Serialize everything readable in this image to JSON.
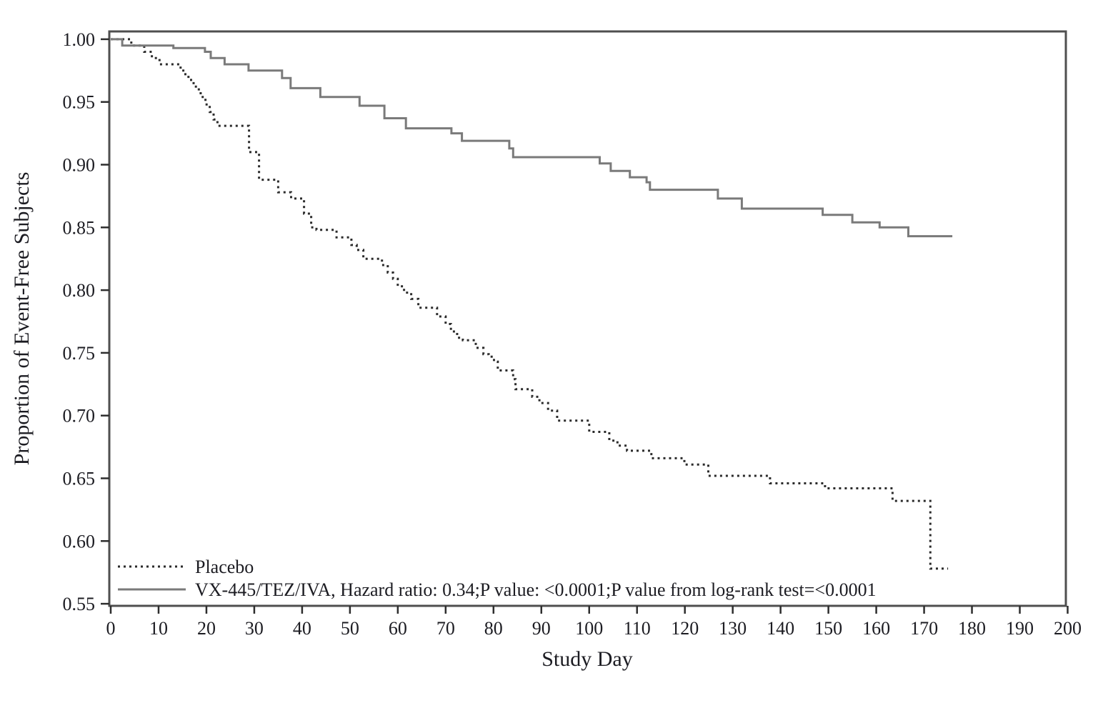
{
  "page": {
    "background": "#ffffff"
  },
  "chart_data": {
    "type": "line",
    "subtype": "kaplan-meier-step",
    "title": "",
    "xlabel": "Study Day",
    "ylabel": "Proportion of Event-Free Subjects",
    "xlim": [
      0,
      200
    ],
    "ylim": [
      0.55,
      1.0
    ],
    "x_ticks": [
      0,
      10,
      20,
      30,
      40,
      50,
      60,
      70,
      80,
      90,
      100,
      110,
      120,
      130,
      140,
      150,
      160,
      170,
      180,
      190,
      200
    ],
    "y_ticks": [
      1.0,
      0.95,
      0.9,
      0.85,
      0.8,
      0.75,
      0.7,
      0.65,
      0.6,
      0.55
    ],
    "grid": false,
    "legend_position": "inside-bottom-left",
    "series": [
      {
        "id": "placebo-curve",
        "name": "Placebo",
        "legend_label": "Placebo",
        "line_style": "dotted",
        "color": "#2b2b2b",
        "end_day": 175.0,
        "points": [
          [
            0,
            1.0
          ],
          [
            4.3,
            0.995
          ],
          [
            7.0,
            0.99
          ],
          [
            8.6,
            0.985
          ],
          [
            10.2,
            0.98
          ],
          [
            14.6,
            0.975
          ],
          [
            15.6,
            0.97
          ],
          [
            16.8,
            0.965
          ],
          [
            17.8,
            0.96
          ],
          [
            18.8,
            0.954
          ],
          [
            19.8,
            0.948
          ],
          [
            20.7,
            0.942
          ],
          [
            21.5,
            0.936
          ],
          [
            22.3,
            0.931
          ],
          [
            28.9,
            0.91
          ],
          [
            31.0,
            0.888
          ],
          [
            35.0,
            0.878
          ],
          [
            37.7,
            0.873
          ],
          [
            40.4,
            0.861
          ],
          [
            41.9,
            0.85
          ],
          [
            43.0,
            0.848
          ],
          [
            47.2,
            0.842
          ],
          [
            50.3,
            0.836
          ],
          [
            51.4,
            0.832
          ],
          [
            52.8,
            0.825
          ],
          [
            56.7,
            0.82
          ],
          [
            57.9,
            0.814
          ],
          [
            59.0,
            0.809
          ],
          [
            60.0,
            0.803
          ],
          [
            61.3,
            0.798
          ],
          [
            62.8,
            0.793
          ],
          [
            64.3,
            0.786
          ],
          [
            68.2,
            0.779
          ],
          [
            70.0,
            0.773
          ],
          [
            71.1,
            0.767
          ],
          [
            72.4,
            0.762
          ],
          [
            73.6,
            0.76
          ],
          [
            76.3,
            0.754
          ],
          [
            77.9,
            0.749
          ],
          [
            79.0,
            0.747
          ],
          [
            80.1,
            0.743
          ],
          [
            80.9,
            0.736
          ],
          [
            84.1,
            0.729
          ],
          [
            84.6,
            0.721
          ],
          [
            88.1,
            0.715
          ],
          [
            89.6,
            0.71
          ],
          [
            91.4,
            0.704
          ],
          [
            93.3,
            0.696
          ],
          [
            100.0,
            0.687
          ],
          [
            104.2,
            0.68
          ],
          [
            105.9,
            0.676
          ],
          [
            107.9,
            0.672
          ],
          [
            113.0,
            0.666
          ],
          [
            119.9,
            0.661
          ],
          [
            124.9,
            0.652
          ],
          [
            137.8,
            0.646
          ],
          [
            149.3,
            0.642
          ],
          [
            163.4,
            0.632
          ],
          [
            171.3,
            0.578
          ]
        ]
      },
      {
        "id": "treatment-curve",
        "name": "VX-445/TEZ/IVA",
        "legend_label": "VX-445/TEZ/IVA, Hazard ratio: 0.34;P value: <0.0001;P value from log-rank test=<0.0001",
        "line_style": "solid",
        "color": "#7a7a7a",
        "end_day": 175.9,
        "points": [
          [
            0,
            1.0
          ],
          [
            2.4,
            0.995
          ],
          [
            13.1,
            0.993
          ],
          [
            19.7,
            0.99
          ],
          [
            20.9,
            0.985
          ],
          [
            23.8,
            0.98
          ],
          [
            28.8,
            0.975
          ],
          [
            35.8,
            0.969
          ],
          [
            37.6,
            0.961
          ],
          [
            43.8,
            0.954
          ],
          [
            52.0,
            0.947
          ],
          [
            57.2,
            0.937
          ],
          [
            61.7,
            0.929
          ],
          [
            71.2,
            0.925
          ],
          [
            73.4,
            0.919
          ],
          [
            83.3,
            0.913
          ],
          [
            84.1,
            0.906
          ],
          [
            102.2,
            0.901
          ],
          [
            104.5,
            0.895
          ],
          [
            108.5,
            0.89
          ],
          [
            112.0,
            0.886
          ],
          [
            112.7,
            0.88
          ],
          [
            126.9,
            0.873
          ],
          [
            131.9,
            0.865
          ],
          [
            148.8,
            0.86
          ],
          [
            155.0,
            0.854
          ],
          [
            160.7,
            0.85
          ],
          [
            166.7,
            0.843
          ]
        ]
      }
    ]
  }
}
